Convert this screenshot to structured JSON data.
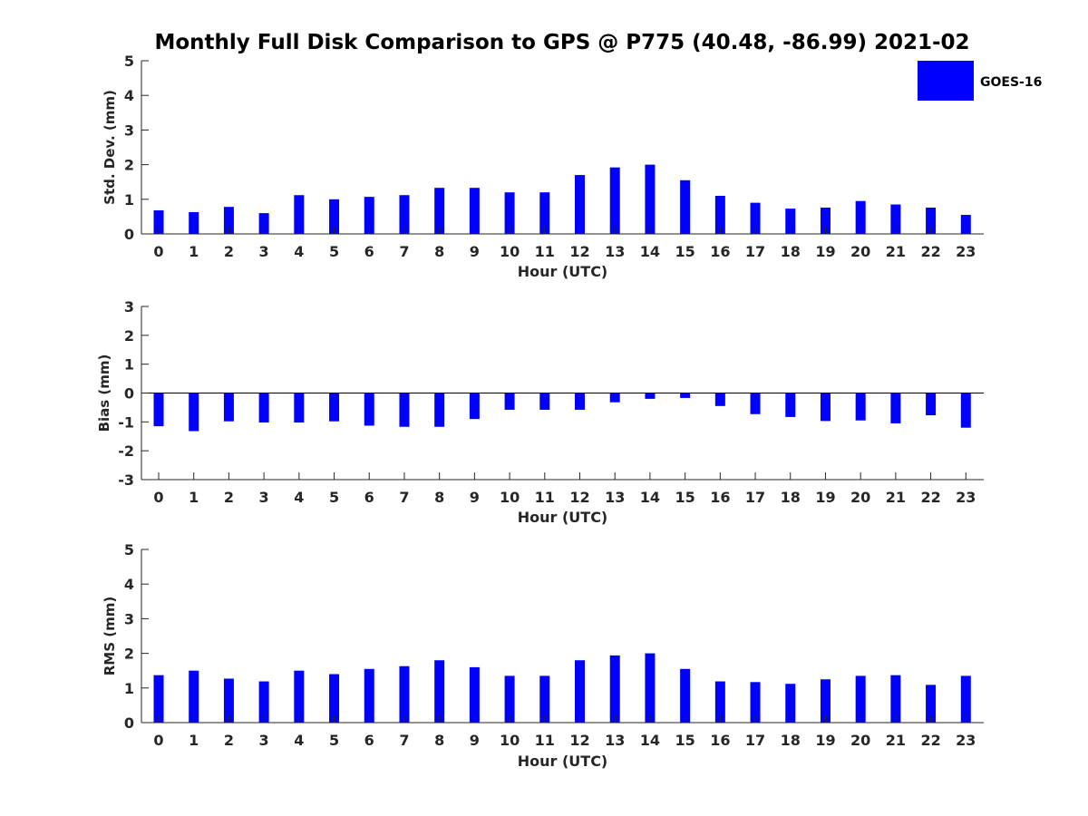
{
  "title": "Monthly Full Disk Comparison to GPS @ P775 (40.48, -86.99) 2021-02",
  "legend": {
    "label": "GOES-16",
    "color": "#0000ff",
    "position": "top-right"
  },
  "chart_data": [
    {
      "type": "bar",
      "xlabel": "Hour (UTC)",
      "ylabel": "Std. Dev. (mm)",
      "ylim": [
        0,
        5
      ],
      "yticks": [
        0,
        1,
        2,
        3,
        4,
        5
      ],
      "categories": [
        "0",
        "1",
        "2",
        "3",
        "4",
        "5",
        "6",
        "7",
        "8",
        "9",
        "10",
        "11",
        "12",
        "13",
        "14",
        "15",
        "16",
        "17",
        "18",
        "19",
        "20",
        "21",
        "22",
        "23"
      ],
      "series": [
        {
          "name": "GOES-16",
          "color": "#0000ff",
          "values": [
            0.68,
            0.63,
            0.78,
            0.6,
            1.12,
            1.0,
            1.07,
            1.12,
            1.33,
            1.33,
            1.2,
            1.2,
            1.7,
            1.92,
            2.0,
            1.55,
            1.1,
            0.9,
            0.73,
            0.76,
            0.95,
            0.85,
            0.76,
            0.55
          ]
        }
      ],
      "grid": false
    },
    {
      "type": "bar",
      "xlabel": "Hour (UTC)",
      "ylabel": "Bias (mm)",
      "ylim": [
        -3,
        3
      ],
      "yticks": [
        -3,
        -2,
        -1,
        0,
        1,
        2,
        3
      ],
      "categories": [
        "0",
        "1",
        "2",
        "3",
        "4",
        "5",
        "6",
        "7",
        "8",
        "9",
        "10",
        "11",
        "12",
        "13",
        "14",
        "15",
        "16",
        "17",
        "18",
        "19",
        "20",
        "21",
        "22",
        "23"
      ],
      "series": [
        {
          "name": "GOES-16",
          "color": "#0000ff",
          "values": [
            -1.15,
            -1.32,
            -0.98,
            -1.02,
            -1.02,
            -0.98,
            -1.13,
            -1.17,
            -1.17,
            -0.9,
            -0.58,
            -0.58,
            -0.58,
            -0.32,
            -0.2,
            -0.17,
            -0.45,
            -0.73,
            -0.83,
            -0.97,
            -0.95,
            -1.05,
            -0.77,
            -1.2
          ]
        }
      ],
      "grid": false
    },
    {
      "type": "bar",
      "xlabel": "Hour (UTC)",
      "ylabel": "RMS (mm)",
      "ylim": [
        0,
        5
      ],
      "yticks": [
        0,
        1,
        2,
        3,
        4,
        5
      ],
      "categories": [
        "0",
        "1",
        "2",
        "3",
        "4",
        "5",
        "6",
        "7",
        "8",
        "9",
        "10",
        "11",
        "12",
        "13",
        "14",
        "15",
        "16",
        "17",
        "18",
        "19",
        "20",
        "21",
        "22",
        "23"
      ],
      "series": [
        {
          "name": "GOES-16",
          "color": "#0000ff",
          "values": [
            1.37,
            1.5,
            1.27,
            1.19,
            1.5,
            1.4,
            1.55,
            1.63,
            1.8,
            1.6,
            1.35,
            1.35,
            1.8,
            1.94,
            2.0,
            1.55,
            1.19,
            1.17,
            1.12,
            1.25,
            1.35,
            1.37,
            1.09,
            1.35
          ]
        }
      ],
      "grid": false
    }
  ]
}
